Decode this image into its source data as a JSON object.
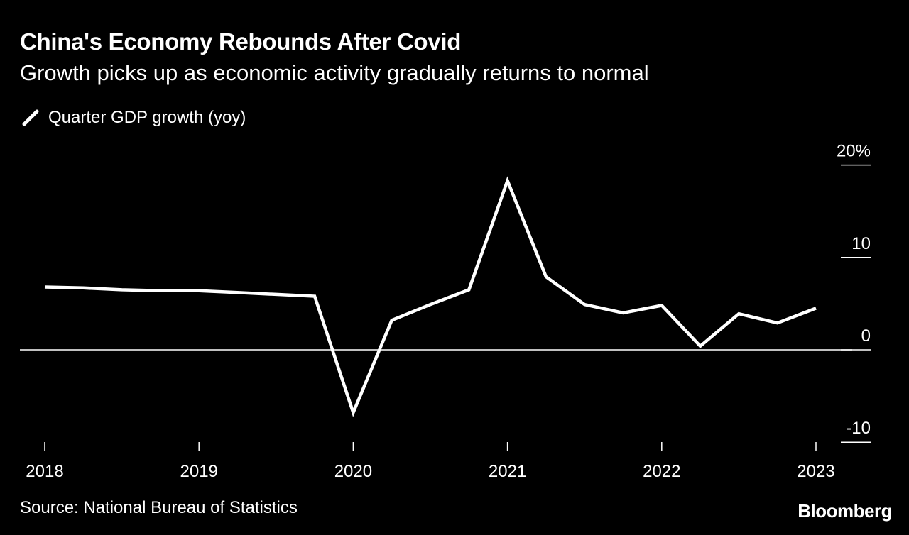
{
  "title": "China's Economy Rebounds After Covid",
  "subtitle": "Growth picks up as economic activity gradually returns to normal",
  "legend": {
    "label": "Quarter GDP growth (yoy)",
    "icon": "line-swatch-icon"
  },
  "source": "Source: National Bureau of Statistics",
  "brand": "Bloomberg",
  "colors": {
    "background": "#000000",
    "line": "#ffffff",
    "text": "#ffffff"
  },
  "chart_data": {
    "type": "line",
    "title": "China's Economy Rebounds After Covid",
    "subtitle": "Growth picks up as economic activity gradually returns to normal",
    "xlabel": "",
    "ylabel": "",
    "x": [
      "2018-Q1",
      "2018-Q2",
      "2018-Q3",
      "2018-Q4",
      "2019-Q1",
      "2019-Q2",
      "2019-Q3",
      "2019-Q4",
      "2020-Q1",
      "2020-Q2",
      "2020-Q3",
      "2020-Q4",
      "2021-Q1",
      "2021-Q2",
      "2021-Q3",
      "2021-Q4",
      "2022-Q1",
      "2022-Q2",
      "2022-Q3",
      "2022-Q4",
      "2023-Q1"
    ],
    "x_tick_labels": [
      "2018",
      "2019",
      "2020",
      "2021",
      "2022",
      "2023"
    ],
    "series": [
      {
        "name": "Quarter GDP growth (yoy)",
        "values": [
          6.8,
          6.7,
          6.5,
          6.4,
          6.4,
          6.2,
          6.0,
          5.8,
          -6.8,
          3.2,
          4.9,
          6.5,
          18.3,
          7.9,
          4.9,
          4.0,
          4.8,
          0.4,
          3.9,
          2.9,
          4.5
        ]
      }
    ],
    "y_ticks": [
      -10,
      0,
      10,
      20
    ],
    "y_tick_labels": [
      "-10",
      "0",
      "10",
      "20%"
    ],
    "ylim": [
      -10,
      20
    ],
    "grid": false,
    "zero_line": true,
    "legend_position": "top-left"
  }
}
